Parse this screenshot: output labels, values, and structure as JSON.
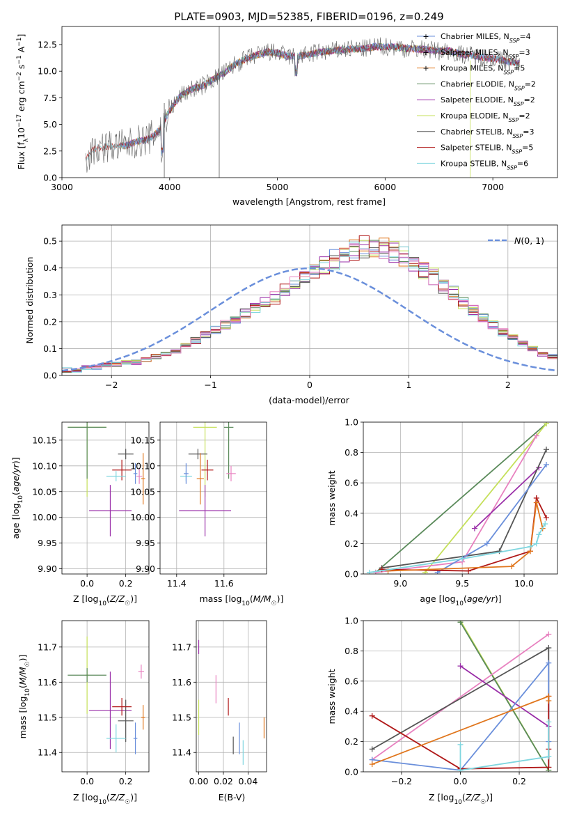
{
  "colors": {
    "Chabrier MILES": "#6a8fdb",
    "Salpeter MILES": "#9a2fa8",
    "Kroupa MILES": "#e0761d",
    "Chabrier ELODIE": "#5a8a5a",
    "Salpeter ELODIE": "#9a2fa8",
    "Kroupa ELODIE": "#c5e05a",
    "Chabrier STELIB": "#555555",
    "Salpeter STELIB": "#b01818",
    "Kroupa STELIB": "#7fd6df",
    "pink": "#e882c0",
    "gauss": "#6a8fdb"
  },
  "chart_data": [
    {
      "type": "line",
      "title": "PLATE=0903, MJD=52385, FIBERID=0196, z=0.249",
      "xlabel": "wavelength [Angstrom, rest frame]",
      "ylabel": "Flux [f_λ10^-17 erg cm^-2 s^-1 A^-1]",
      "xlim": [
        3000,
        7600
      ],
      "ylim": [
        0,
        14.2
      ],
      "xticks": [
        "3000",
        "4000",
        "5000",
        "6000",
        "7000"
      ],
      "yticks": [
        "0.0",
        "2.5",
        "5.0",
        "7.5",
        "10.0",
        "12.5"
      ],
      "continuum_x": [
        3200,
        3300,
        3400,
        3500,
        3600,
        3700,
        3800,
        3900,
        4000,
        4100,
        4200,
        4300,
        4400,
        4500,
        4600,
        4700,
        4800,
        4900,
        5000,
        5100,
        5200,
        5300,
        5400,
        5500,
        5600,
        5700,
        5800,
        5900,
        6000,
        6100,
        6200,
        6300,
        6400,
        6500,
        6600,
        6700,
        6800,
        6900,
        7000,
        7100,
        7200,
        7300
      ],
      "continuum_y": [
        1.4,
        2.7,
        2.9,
        3.0,
        3.0,
        3.4,
        3.6,
        4.4,
        6.3,
        7.7,
        8.3,
        8.6,
        9.2,
        9.8,
        10.6,
        11.1,
        11.5,
        11.8,
        11.7,
        11.4,
        11.4,
        11.6,
        11.8,
        11.9,
        12.0,
        12.1,
        12.1,
        12.3,
        12.3,
        12.3,
        12.1,
        12.1,
        12.0,
        11.9,
        11.9,
        11.6,
        11.5,
        11.3,
        11.2,
        11.0,
        10.8,
        10.7
      ],
      "legend_loc": "upper right",
      "legend": [
        {
          "label": "Chabrier MILES, N",
          "sub": "SSP",
          "eq": "=4",
          "color": "Chabrier MILES"
        },
        {
          "label": "Salpeter MILES, N",
          "sub": "SSP",
          "eq": "=3",
          "color": "Salpeter MILES"
        },
        {
          "label": "Kroupa MILES, N",
          "sub": "SSP",
          "eq": "=5",
          "color": "Kroupa MILES"
        },
        {
          "label": "Chabrier ELODIE, N",
          "sub": "SSP",
          "eq": "=2",
          "color": "Chabrier ELODIE"
        },
        {
          "label": "Salpeter ELODIE, N",
          "sub": "SSP",
          "eq": "=2",
          "color": "Salpeter ELODIE"
        },
        {
          "label": "Kroupa ELODIE, N",
          "sub": "SSP",
          "eq": "=2",
          "color": "Kroupa ELODIE"
        },
        {
          "label": "Chabrier STELIB, N",
          "sub": "SSP",
          "eq": "=3",
          "color": "Chabrier STELIB"
        },
        {
          "label": "Salpeter STELIB, N",
          "sub": "SSP",
          "eq": "=5",
          "color": "Salpeter STELIB"
        },
        {
          "label": "Kroupa STELIB, N",
          "sub": "SSP",
          "eq": "=6",
          "color": "Kroupa STELIB"
        }
      ]
    },
    {
      "type": "bar",
      "xlabel": "(data-model)/error",
      "ylabel": "Normed distribution",
      "xlim": [
        -2.5,
        2.5
      ],
      "ylim": [
        0,
        0.56
      ],
      "xticks": [
        "-2",
        "-1",
        "0",
        "1",
        "2"
      ],
      "yticks": [
        "0.0",
        "0.1",
        "0.2",
        "0.3",
        "0.4",
        "0.5"
      ],
      "bin_width": 0.1,
      "bin_start": -2.5,
      "hist_values": [
        0.02,
        0.02,
        0.03,
        0.03,
        0.04,
        0.04,
        0.05,
        0.05,
        0.06,
        0.07,
        0.08,
        0.09,
        0.11,
        0.13,
        0.15,
        0.17,
        0.19,
        0.21,
        0.23,
        0.25,
        0.27,
        0.29,
        0.32,
        0.34,
        0.36,
        0.39,
        0.41,
        0.43,
        0.45,
        0.47,
        0.48,
        0.48,
        0.47,
        0.46,
        0.44,
        0.42,
        0.39,
        0.37,
        0.33,
        0.31,
        0.27,
        0.24,
        0.21,
        0.19,
        0.16,
        0.14,
        0.12,
        0.1,
        0.08,
        0.07
      ],
      "legend_loc": "upper right",
      "gauss_label": "N(0, 1)"
    },
    {
      "type": "scatter",
      "xlabel": "Z [log10(Z/Z☉)]",
      "ylabel": "age  [log10(age/yr)]",
      "xlim": [
        -0.13,
        0.32
      ],
      "ylim": [
        9.89,
        10.185
      ],
      "xticks": [
        "0.0",
        "0.2"
      ],
      "yticks": [
        "9.90",
        "9.95",
        "10.00",
        "10.05",
        "10.10",
        "10.15"
      ],
      "points": [
        {
          "c": "Kroupa ELODIE",
          "x": 0.0,
          "y": 10.175,
          "xe": 0.2,
          "ye": 0.27
        },
        {
          "c": "Chabrier ELODIE",
          "x": 0.0,
          "y": 10.175,
          "xe": 0.2,
          "ye": 0.2
        },
        {
          "c": "Salpeter MILES",
          "x": 0.12,
          "y": 10.013,
          "xe": 0.22,
          "ye": 0.1
        },
        {
          "c": "Chabrier STELIB",
          "x": 0.2,
          "y": 10.123,
          "xe": 0.08,
          "ye": 0.02
        },
        {
          "c": "Salpeter STELIB",
          "x": 0.18,
          "y": 10.092,
          "xe": 0.1,
          "ye": 0.04
        },
        {
          "c": "Kroupa STELIB",
          "x": 0.15,
          "y": 10.08,
          "xe": 0.1,
          "ye": 0.02
        },
        {
          "c": "Chabrier MILES",
          "x": 0.25,
          "y": 10.085,
          "xe": 0.02,
          "ye": 0.04
        },
        {
          "c": "pink",
          "x": 0.27,
          "y": 10.08,
          "xe": 0.03,
          "ye": 0.03
        },
        {
          "c": "Kroupa MILES",
          "x": 0.29,
          "y": 10.075,
          "xe": 0.02,
          "ye": 0.1
        }
      ]
    },
    {
      "type": "scatter",
      "xlabel": "mass [log10(M/M☉)]",
      "ylabel": "",
      "xlim": [
        11.33,
        11.78
      ],
      "ylim": [
        9.89,
        10.185
      ],
      "xticks": [
        "11.4",
        "11.6"
      ],
      "yticks": [
        "9.90",
        "9.95",
        "10.00",
        "10.05",
        "10.10",
        "10.15"
      ],
      "points": [
        {
          "c": "Kroupa ELODIE",
          "x": 11.52,
          "y": 10.175,
          "xe": 0.1,
          "ye": 0.27
        },
        {
          "c": "Chabrier ELODIE",
          "x": 11.62,
          "y": 10.175,
          "xe": 0.04,
          "ye": 0.2
        },
        {
          "c": "Salpeter MILES",
          "x": 11.52,
          "y": 10.013,
          "xe": 0.22,
          "ye": 0.1
        },
        {
          "c": "Chabrier STELIB",
          "x": 11.49,
          "y": 10.123,
          "xe": 0.08,
          "ye": 0.02
        },
        {
          "c": "Salpeter STELIB",
          "x": 11.53,
          "y": 10.092,
          "xe": 0.05,
          "ye": 0.04
        },
        {
          "c": "Kroupa STELIB",
          "x": 11.44,
          "y": 10.08,
          "xe": 0.05,
          "ye": 0.02
        },
        {
          "c": "Chabrier MILES",
          "x": 11.44,
          "y": 10.085,
          "xe": 0.02,
          "ye": 0.04
        },
        {
          "c": "pink",
          "x": 11.63,
          "y": 10.085,
          "xe": 0.04,
          "ye": 0.03
        },
        {
          "c": "Kroupa MILES",
          "x": 11.5,
          "y": 10.075,
          "xe": 0.03,
          "ye": 0.1
        }
      ]
    },
    {
      "type": "line",
      "xlabel": "age  [log10(age/yr)]",
      "ylabel": "mass weight",
      "xlim": [
        8.7,
        10.27
      ],
      "ylim": [
        0,
        1.0
      ],
      "xticks": [
        "9.0",
        "9.5",
        "10.0"
      ],
      "yticks": [
        "0.0",
        "0.2",
        "0.4",
        "0.6",
        "0.8",
        "1.0"
      ],
      "series": [
        {
          "c": "Chabrier ELODIE",
          "x": [
            8.8,
            10.18
          ],
          "y": [
            0.01,
            0.99
          ]
        },
        {
          "c": "Kroupa ELODIE",
          "x": [
            9.2,
            10.18
          ],
          "y": [
            0.01,
            0.99
          ]
        },
        {
          "c": "pink",
          "x": [
            8.8,
            9.5,
            10.1
          ],
          "y": [
            0.01,
            0.08,
            0.91
          ]
        },
        {
          "c": "Salpeter MILES",
          "x": [
            9.6,
            10.12
          ],
          "y": [
            0.3,
            0.7
          ]
        },
        {
          "c": "Chabrier STELIB",
          "x": [
            8.85,
            9.8,
            10.18
          ],
          "y": [
            0.04,
            0.15,
            0.82
          ]
        },
        {
          "c": "Chabrier MILES",
          "x": [
            9.3,
            9.7,
            10.18
          ],
          "y": [
            0.01,
            0.2,
            0.72
          ]
        },
        {
          "c": "Salpeter STELIB",
          "x": [
            8.85,
            9.55,
            10.05,
            10.1,
            10.18
          ],
          "y": [
            0.03,
            0.02,
            0.15,
            0.5,
            0.37
          ]
        },
        {
          "c": "Kroupa MILES",
          "x": [
            8.9,
            9.9,
            10.05,
            10.1,
            10.15
          ],
          "y": [
            0.02,
            0.05,
            0.15,
            0.47,
            0.3
          ]
        },
        {
          "c": "Kroupa STELIB",
          "x": [
            8.75,
            9.5,
            10.05,
            10.1,
            10.12,
            10.17
          ],
          "y": [
            0.01,
            0.1,
            0.18,
            0.2,
            0.26,
            0.33
          ]
        }
      ]
    },
    {
      "type": "scatter",
      "xlabel": "Z [log10(Z/Z☉)]",
      "ylabel": "mass [log10(M/M☉)]",
      "xlim": [
        -0.13,
        0.32
      ],
      "ylim": [
        11.345,
        11.775
      ],
      "xticks": [
        "0.0",
        "0.2"
      ],
      "yticks": [
        "11.4",
        "11.5",
        "11.6",
        "11.7"
      ],
      "points": [
        {
          "c": "Kroupa ELODIE",
          "x": 0.0,
          "y": 11.62,
          "xe": 0.02,
          "ye": 0.22
        },
        {
          "c": "Chabrier ELODIE",
          "x": 0.0,
          "y": 11.62,
          "xe": 0.2,
          "ye": 0.04
        },
        {
          "c": "Salpeter MILES",
          "x": 0.12,
          "y": 11.52,
          "xe": 0.22,
          "ye": 0.22
        },
        {
          "c": "Chabrier STELIB",
          "x": 0.2,
          "y": 11.49,
          "xe": 0.08,
          "ye": 0.12
        },
        {
          "c": "Salpeter STELIB",
          "x": 0.18,
          "y": 11.53,
          "xe": 0.1,
          "ye": 0.05
        },
        {
          "c": "Kroupa STELIB",
          "x": 0.15,
          "y": 11.44,
          "xe": 0.1,
          "ye": 0.08
        },
        {
          "c": "Chabrier MILES",
          "x": 0.25,
          "y": 11.44,
          "xe": 0.02,
          "ye": 0.09
        },
        {
          "c": "pink",
          "x": 0.28,
          "y": 11.63,
          "xe": 0.03,
          "ye": 0.04
        },
        {
          "c": "Kroupa MILES",
          "x": 0.29,
          "y": 11.5,
          "xe": 0.02,
          "ye": 0.07
        }
      ]
    },
    {
      "type": "scatter",
      "xlabel": "E(B-V)",
      "ylabel": "",
      "xlim": [
        -0.002,
        0.055
      ],
      "ylim": [
        11.345,
        11.775
      ],
      "xticks": [
        "0.00",
        "0.02",
        "0.04"
      ],
      "yticks": [
        "11.4",
        "11.5",
        "11.6",
        "11.7"
      ],
      "points": [
        {
          "c": "Salpeter MILES",
          "x": 0.0,
          "y": 11.7,
          "ye": 0.04
        },
        {
          "c": "Kroupa ELODIE",
          "x": 0.0,
          "y": 11.5,
          "ye": 0.1
        },
        {
          "c": "pink",
          "x": 0.014,
          "y": 11.58,
          "ye": 0.08
        },
        {
          "c": "Salpeter STELIB",
          "x": 0.024,
          "y": 11.53,
          "ye": 0.05
        },
        {
          "c": "Chabrier STELIB",
          "x": 0.028,
          "y": 11.42,
          "ye": 0.05
        },
        {
          "c": "Chabrier MILES",
          "x": 0.033,
          "y": 11.44,
          "ye": 0.09
        },
        {
          "c": "Kroupa STELIB",
          "x": 0.036,
          "y": 11.4,
          "ye": 0.07
        },
        {
          "c": "Kroupa MILES",
          "x": 0.053,
          "y": 11.47,
          "ye": 0.06
        }
      ]
    },
    {
      "type": "line",
      "xlabel": "Z [log10(Z/Z☉)]",
      "ylabel": "mass weight",
      "xlim": [
        -0.33,
        0.33
      ],
      "ylim": [
        0,
        1.0
      ],
      "xticks": [
        "-0.2",
        "0.0",
        "0.2"
      ],
      "yticks": [
        "0.0",
        "0.2",
        "0.4",
        "0.6",
        "0.8",
        "1.0"
      ],
      "series": [
        {
          "c": "Kroupa ELODIE",
          "x": [
            0.0,
            0.3
          ],
          "y": [
            1.0,
            0.01
          ]
        },
        {
          "c": "Chabrier ELODIE",
          "x": [
            0.0,
            0.3
          ],
          "y": [
            0.99,
            0.01
          ]
        },
        {
          "c": "pink",
          "x": [
            -0.3,
            0.3
          ],
          "y": [
            0.08,
            0.91
          ]
        },
        {
          "c": "Salpeter MILES",
          "x": [
            0.0,
            0.3
          ],
          "y": [
            0.7,
            0.3
          ]
        },
        {
          "c": "Chabrier STELIB",
          "x": [
            -0.3,
            0.3,
            0.3
          ],
          "y": [
            0.15,
            0.82,
            0.03
          ]
        },
        {
          "c": "Chabrier MILES",
          "x": [
            -0.3,
            0.0,
            0.3,
            0.3
          ],
          "y": [
            0.08,
            0.01,
            0.72,
            0.2
          ]
        },
        {
          "c": "Salpeter STELIB",
          "x": [
            -0.3,
            0.0,
            0.3,
            0.3,
            0.3
          ],
          "y": [
            0.37,
            0.02,
            0.03,
            0.5,
            0.15
          ]
        },
        {
          "c": "Kroupa MILES",
          "x": [
            -0.3,
            0.3,
            0.3
          ],
          "y": [
            0.05,
            0.5,
            0.47
          ]
        },
        {
          "c": "Kroupa STELIB",
          "x": [
            0.0,
            0.0,
            0.3,
            0.3
          ],
          "y": [
            0.18,
            0.01,
            0.1,
            0.33
          ]
        }
      ]
    }
  ]
}
